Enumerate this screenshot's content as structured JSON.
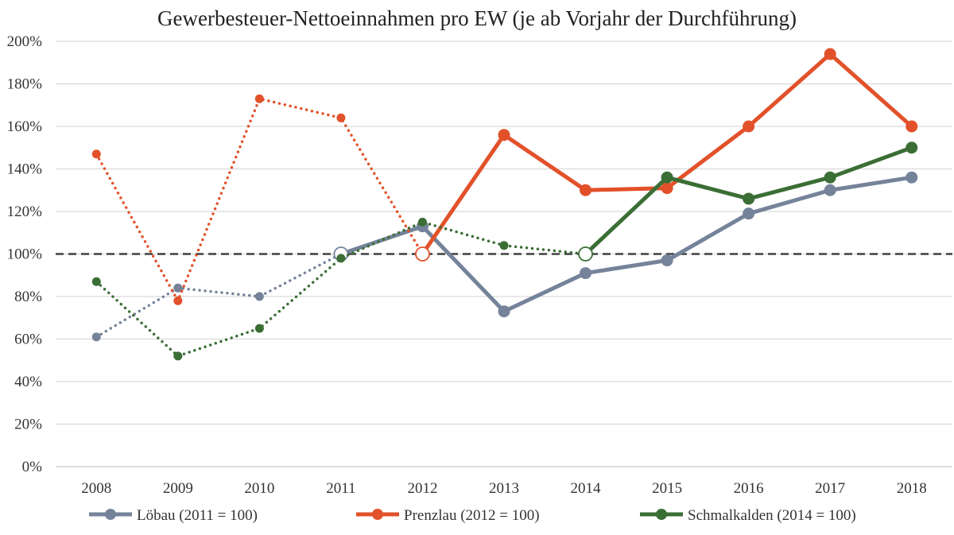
{
  "chart_data": {
    "type": "line",
    "title": "Gewerbesteuer-Nettoeinnahmen pro EW (je ab Vorjahr der Durchführung)",
    "xlabel": "",
    "ylabel": "",
    "ylim": [
      0,
      200
    ],
    "y_ticks": [
      "0%",
      "20%",
      "40%",
      "60%",
      "80%",
      "100%",
      "120%",
      "140%",
      "160%",
      "180%",
      "200%"
    ],
    "categories": [
      "2008",
      "2009",
      "2010",
      "2011",
      "2012",
      "2013",
      "2014",
      "2015",
      "2016",
      "2017",
      "2018"
    ],
    "reference_line": 100,
    "grid": true,
    "legend_position": "bottom",
    "series": [
      {
        "name": "Löbau (2011 = 100)",
        "color": "#75839a",
        "base_year": "2011",
        "values": [
          61,
          84,
          80,
          100,
          113,
          73,
          91,
          97,
          119,
          130,
          136
        ]
      },
      {
        "name": "Prenzlau (2012 = 100)",
        "color": "#e2512a",
        "base_year": "2012",
        "values": [
          147,
          78,
          173,
          164,
          100,
          156,
          130,
          131,
          160,
          194,
          160
        ]
      },
      {
        "name": "Schmalkalden (2014 = 100)",
        "color": "#3b6e35",
        "base_year": "2014",
        "values": [
          87,
          52,
          65,
          98,
          115,
          104,
          100,
          136,
          126,
          136,
          150
        ]
      }
    ]
  }
}
